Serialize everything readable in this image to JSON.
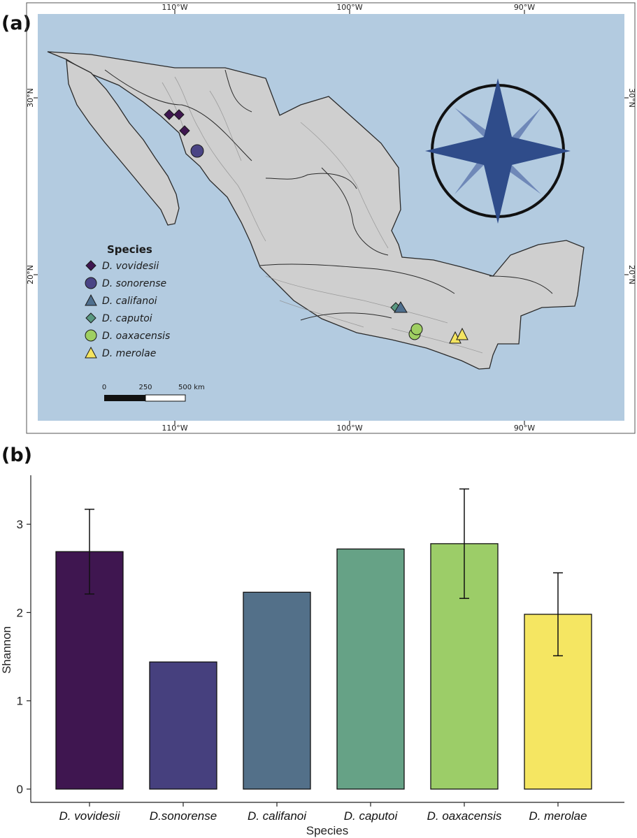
{
  "panel_a": {
    "label": "(a)",
    "lon_labels": [
      "110°W",
      "100°W",
      "90°W"
    ],
    "lat_labels": [
      "30°N",
      "20°N"
    ],
    "legend": {
      "title": "Species",
      "items": [
        {
          "name": "D. vovidesii",
          "shape": "diamond",
          "color": "#3f1650"
        },
        {
          "name": "D. sonorense",
          "shape": "circle",
          "color": "#4a4485"
        },
        {
          "name": "D. califanoi",
          "shape": "triangle",
          "color": "#4f6f8e"
        },
        {
          "name": "D. caputoi",
          "shape": "diamond",
          "color": "#5a9880"
        },
        {
          "name": "D. oaxacensis",
          "shape": "circle",
          "color": "#9fcf62"
        },
        {
          "name": "D. merolae",
          "shape": "triangle",
          "color": "#f4e460"
        }
      ]
    },
    "scale_bar": {
      "labels": [
        "0",
        "250",
        "500 km"
      ]
    },
    "colors": {
      "ocean": "#b3cbe0",
      "land": "#cfcfcf",
      "compass": "#2f4c8a",
      "compass_light": "#6f88b8"
    }
  },
  "chart_data": {
    "type": "bar",
    "panel_label": "(b)",
    "categories": [
      "D. vovidesii",
      "D.sonorense",
      "D. califanoi",
      "D. caputoi",
      "D. oaxacensis",
      "D. merolae"
    ],
    "values": [
      2.69,
      1.44,
      2.23,
      2.72,
      2.78,
      1.98
    ],
    "error_low": [
      2.21,
      null,
      null,
      null,
      2.16,
      1.51
    ],
    "error_high": [
      3.17,
      null,
      null,
      null,
      3.4,
      2.45
    ],
    "colors": [
      "#3f1650",
      "#46407e",
      "#537089",
      "#66a286",
      "#9ccd68",
      "#f5e662"
    ],
    "xlabel": "Species",
    "ylabel": "Shannon",
    "ylim": [
      0,
      3.5
    ],
    "yticks": [
      0,
      1,
      2,
      3
    ],
    "grid": false
  }
}
